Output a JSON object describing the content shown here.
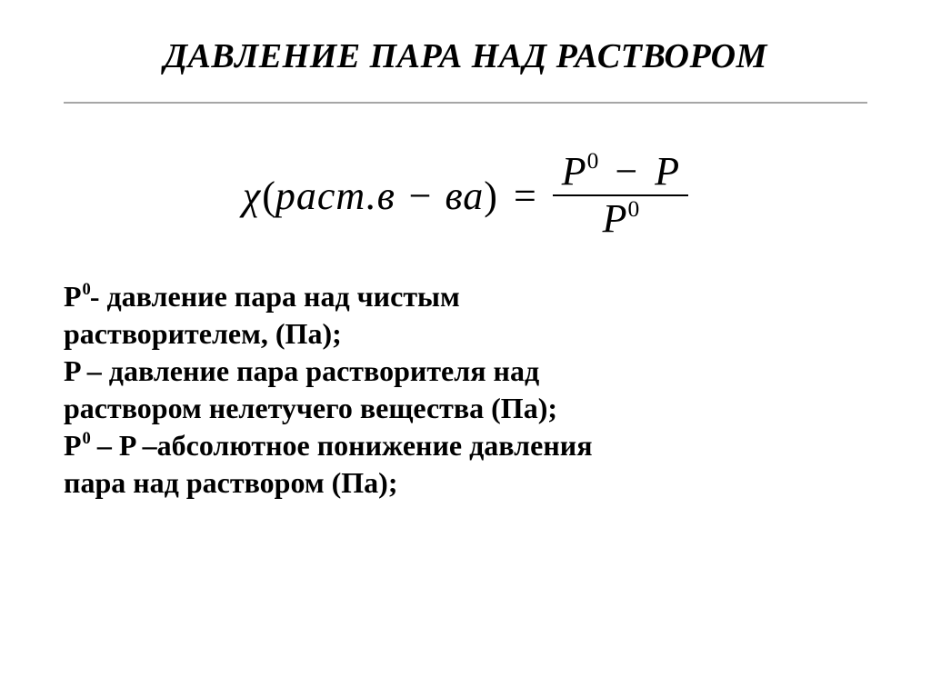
{
  "title": "ДАВЛЕНИЕ ПАРА НАД РАСТВОРОМ",
  "title_fontsize": 38,
  "rule_color": "#a6a6a6",
  "formula": {
    "fontsize": 44,
    "chi": "χ",
    "arg_text": " раст.в − ва",
    "eq": "=",
    "num_P0": "P",
    "num_P0_sup": "0",
    "num_minus": "−",
    "num_P": "P",
    "den_P": "P",
    "den_sup": "0"
  },
  "defs": {
    "fontsize": 32,
    "lines": {
      "l1a": "P",
      "l1a_sup": "0",
      "l1b": "- давление пара над чистым",
      "l2": "растворителем, (Па);",
      "l3": "P – давление пара растворителя над",
      "l4": "раствором нелетучего вещества (Па);",
      "l5a": "P",
      "l5a_sup": "0",
      "l5b": " – P –абсолютное понижение давления",
      "l6": "пара над раствором (Па);"
    }
  },
  "colors": {
    "text": "#000000",
    "background": "#ffffff"
  }
}
